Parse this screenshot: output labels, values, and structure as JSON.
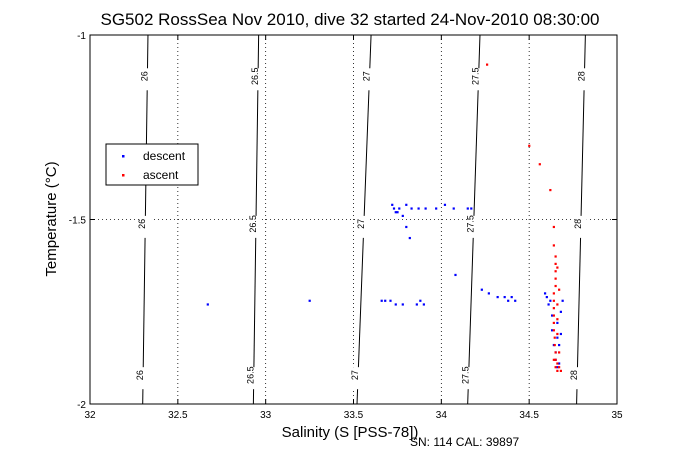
{
  "chart_data": {
    "type": "scatter",
    "title": "SG502 RossSea Nov 2010, dive 32 started 24-Nov-2010 08:30:00",
    "xlabel": "Salinity (S [PSS-78])",
    "ylabel": "Temperature (°C)",
    "xlim": [
      32,
      35
    ],
    "ylim": [
      -2,
      -1
    ],
    "x_ticks": [
      "32",
      "32.5",
      "33",
      "33.5",
      "34",
      "34.5",
      "35"
    ],
    "y_ticks": [
      "-2",
      "-1.5",
      "-1"
    ],
    "grid": "dotted",
    "legend_position": "upper-left",
    "footer": "SN: 114  CAL: 39897",
    "isopycnals": [
      {
        "label": "26",
        "x_bottom": 32.3,
        "x_top": 32.33
      },
      {
        "label": "26.5",
        "x_bottom": 32.93,
        "x_top": 32.96
      },
      {
        "label": "27",
        "x_bottom": 33.52,
        "x_top": 33.6
      },
      {
        "label": "27.5",
        "x_bottom": 34.15,
        "x_top": 34.22
      },
      {
        "label": "28",
        "x_bottom": 34.77,
        "x_top": 34.82
      }
    ],
    "series": [
      {
        "name": "descent",
        "color": "#0000ff",
        "points": [
          [
            32.67,
            -1.73
          ],
          [
            33.25,
            -1.72
          ],
          [
            33.66,
            -1.72
          ],
          [
            33.68,
            -1.72
          ],
          [
            33.71,
            -1.72
          ],
          [
            33.74,
            -1.73
          ],
          [
            33.78,
            -1.73
          ],
          [
            33.86,
            -1.73
          ],
          [
            33.88,
            -1.72
          ],
          [
            33.9,
            -1.73
          ],
          [
            33.72,
            -1.46
          ],
          [
            33.73,
            -1.47
          ],
          [
            33.74,
            -1.48
          ],
          [
            33.75,
            -1.48
          ],
          [
            33.76,
            -1.47
          ],
          [
            33.78,
            -1.49
          ],
          [
            33.8,
            -1.52
          ],
          [
            33.82,
            -1.55
          ],
          [
            33.8,
            -1.46
          ],
          [
            33.83,
            -1.47
          ],
          [
            33.87,
            -1.47
          ],
          [
            33.91,
            -1.47
          ],
          [
            33.97,
            -1.47
          ],
          [
            34.02,
            -1.46
          ],
          [
            34.07,
            -1.47
          ],
          [
            34.15,
            -1.47
          ],
          [
            34.17,
            -1.47
          ],
          [
            34.08,
            -1.65
          ],
          [
            34.23,
            -1.69
          ],
          [
            34.27,
            -1.7
          ],
          [
            34.32,
            -1.71
          ],
          [
            34.36,
            -1.71
          ],
          [
            34.38,
            -1.72
          ],
          [
            34.4,
            -1.71
          ],
          [
            34.42,
            -1.72
          ],
          [
            34.59,
            -1.7
          ],
          [
            34.6,
            -1.71
          ],
          [
            34.61,
            -1.73
          ],
          [
            34.62,
            -1.72
          ],
          [
            34.63,
            -1.76
          ],
          [
            34.63,
            -1.8
          ],
          [
            34.64,
            -1.84
          ],
          [
            34.65,
            -1.86
          ],
          [
            34.65,
            -1.88
          ],
          [
            34.66,
            -1.82
          ],
          [
            34.66,
            -1.78
          ],
          [
            34.67,
            -1.84
          ],
          [
            34.67,
            -1.89
          ],
          [
            34.68,
            -1.75
          ],
          [
            34.68,
            -1.81
          ],
          [
            34.69,
            -1.72
          ],
          [
            34.66,
            -1.9
          ]
        ]
      },
      {
        "name": "ascent",
        "color": "#ff0000",
        "points": [
          [
            34.26,
            -1.08
          ],
          [
            34.5,
            -1.3
          ],
          [
            34.56,
            -1.35
          ],
          [
            34.62,
            -1.42
          ],
          [
            34.64,
            -1.52
          ],
          [
            34.64,
            -1.57
          ],
          [
            34.65,
            -1.6
          ],
          [
            34.65,
            -1.62
          ],
          [
            34.65,
            -1.64
          ],
          [
            34.65,
            -1.66
          ],
          [
            34.65,
            -1.68
          ],
          [
            34.64,
            -1.7
          ],
          [
            34.64,
            -1.72
          ],
          [
            34.64,
            -1.74
          ],
          [
            34.64,
            -1.76
          ],
          [
            34.64,
            -1.78
          ],
          [
            34.64,
            -1.8
          ],
          [
            34.645,
            -1.82
          ],
          [
            34.645,
            -1.84
          ],
          [
            34.65,
            -1.86
          ],
          [
            34.65,
            -1.88
          ],
          [
            34.66,
            -1.89
          ],
          [
            34.67,
            -1.9
          ],
          [
            34.68,
            -1.91
          ],
          [
            34.66,
            -1.91
          ],
          [
            34.65,
            -1.9
          ],
          [
            34.64,
            -1.88
          ],
          [
            34.66,
            -1.73
          ],
          [
            34.66,
            -1.77
          ],
          [
            34.66,
            -1.81
          ],
          [
            34.67,
            -1.86
          ],
          [
            34.67,
            -1.69
          ],
          [
            34.66,
            -1.63
          ]
        ]
      }
    ]
  }
}
